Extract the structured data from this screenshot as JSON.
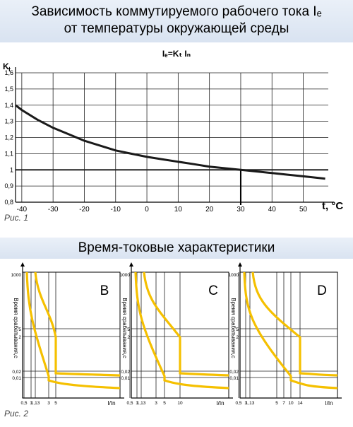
{
  "section1": {
    "title_line1": "Зависимость коммутируемого рабочего тока Iₑ",
    "title_line2": "от температуры окружающей среды",
    "figure_caption": "Рис. 1"
  },
  "section2": {
    "title": "Время-токовые характеристики",
    "figure_caption": "Рис. 2"
  },
  "colors": {
    "curve": "#1a1a1a",
    "trip_band": "#f5c000",
    "grid": "#222222"
  },
  "chart_data": [
    {
      "type": "line",
      "formula": "Ie=Kt In",
      "ylabel": "Kt",
      "xlabel": "t, °C",
      "xlim": [
        -42,
        58
      ],
      "ylim": [
        0.8,
        1.6
      ],
      "x_ticks": [
        "-40",
        "-30",
        "-20",
        "-10",
        "0",
        "10",
        "20",
        "30",
        "40",
        "50"
      ],
      "y_ticks": [
        "0,8",
        "0,9",
        "1",
        "1,1",
        "1,2",
        "1,3",
        "1,4",
        "1,5",
        "1,6"
      ],
      "marker": {
        "t": 30,
        "kt": 1
      },
      "series": [
        {
          "x": [
            -42,
            -40,
            -35,
            -30,
            -25,
            -20,
            -15,
            -10,
            -5,
            0,
            5,
            10,
            15,
            20,
            25,
            30,
            35,
            40,
            45,
            50,
            55,
            57
          ],
          "y": [
            1.4,
            1.37,
            1.31,
            1.26,
            1.22,
            1.18,
            1.15,
            1.12,
            1.1,
            1.08,
            1.065,
            1.05,
            1.035,
            1.02,
            1.01,
            1.0,
            0.99,
            0.98,
            0.97,
            0.96,
            0.95,
            0.945
          ]
        }
      ]
    },
    {
      "type": "line",
      "curve": "B",
      "ylabel": "Время срабатывания,с",
      "xlabel": "I/In",
      "y_ticks": [
        "1000",
        "5",
        "2",
        "0,02",
        "0,01"
      ],
      "x_ticks": [
        "0,5",
        "1",
        "1,13",
        "3",
        "5"
      ],
      "magnetic_range": [
        3,
        5
      ]
    },
    {
      "type": "line",
      "curve": "C",
      "ylabel": "Время срабатывания,с",
      "xlabel": "I/In",
      "y_ticks": [
        "1000",
        "5",
        "2",
        "0,02",
        "0,01"
      ],
      "x_ticks": [
        "0,5",
        "1",
        "1,13",
        "3",
        "5",
        "10"
      ],
      "magnetic_range": [
        5,
        10
      ]
    },
    {
      "type": "line",
      "curve": "D",
      "ylabel": "Время срабатывания,с",
      "xlabel": "I/In",
      "y_ticks": [
        "1000",
        "5",
        "2",
        "0,02",
        "0,01"
      ],
      "x_ticks": [
        "0,5",
        "1",
        "1,13",
        "5",
        "7",
        "10",
        "14"
      ],
      "magnetic_range": [
        10,
        14
      ]
    }
  ]
}
